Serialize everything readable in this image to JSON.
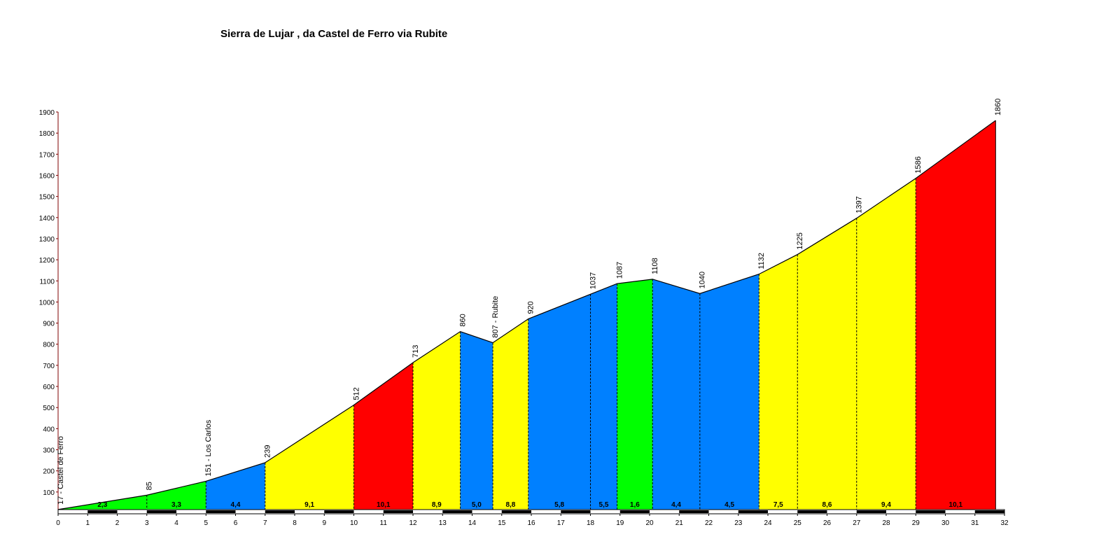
{
  "chart_data": {
    "type": "area",
    "title": "Sierra de Lujar , da Castel de Ferro via Rubite",
    "x": [
      0,
      3.0,
      5.0,
      7.0,
      10.0,
      12.0,
      13.6,
      14.7,
      15.9,
      18.0,
      18.9,
      20.1,
      21.7,
      23.7,
      25.0,
      27.0,
      29.0,
      31.7
    ],
    "values": [
      17,
      85,
      151,
      239,
      512,
      713,
      860,
      807,
      920,
      1037,
      1087,
      1108,
      1040,
      1132,
      1225,
      1397,
      1586,
      1860
    ],
    "value_labels": [
      "17 - Castel de Ferro",
      "85",
      "151 - Los Carlos",
      "239",
      "512",
      "713",
      "860",
      "807 - Rubite",
      "920",
      "1037",
      "1087",
      "1108",
      "1040",
      "1132",
      "1225",
      "1397",
      "1586",
      "1860"
    ],
    "segment_labels": [
      "2,3",
      "3,3",
      "4,4",
      "9,1",
      "10,1",
      "8,9",
      "5,0",
      "8,8",
      "5,8",
      "5,5",
      "1,6",
      "4,4",
      "4,5",
      "7,5",
      "8,6",
      "9,4",
      "10,1"
    ],
    "segment_colors": [
      "#00ff00",
      "#00ff00",
      "#0080ff",
      "#ffff00",
      "#ff0000",
      "#ffff00",
      "#0080ff",
      "#ffff00",
      "#0080ff",
      "#0080ff",
      "#00ff00",
      "#0080ff",
      "#0080ff",
      "#ffff00",
      "#ffff00",
      "#ffff00",
      "#ff0000"
    ],
    "xlim": [
      0,
      32
    ],
    "xticks": [
      0,
      1,
      2,
      3,
      4,
      5,
      6,
      7,
      8,
      9,
      10,
      11,
      12,
      13,
      14,
      15,
      16,
      17,
      18,
      19,
      20,
      21,
      22,
      23,
      24,
      25,
      26,
      27,
      28,
      29,
      30,
      31,
      32
    ],
    "ylim": [
      0,
      1900
    ],
    "yticks": [
      100,
      200,
      300,
      400,
      500,
      600,
      700,
      800,
      900,
      1000,
      1100,
      1200,
      1300,
      1400,
      1500,
      1600,
      1700,
      1800,
      1900
    ]
  }
}
